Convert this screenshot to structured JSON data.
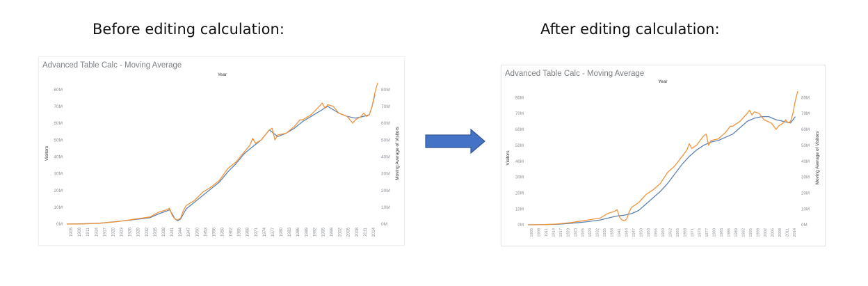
{
  "captions": {
    "before": "Before editing calculation:",
    "after": "After editing calculation:"
  },
  "colors": {
    "visitors": "#5b82b3",
    "moving_average": "#f0943b",
    "arrow": "#4472c4",
    "grid_text": "#8d9196"
  },
  "icons": {
    "arrow": "right-arrow-icon"
  },
  "chart_data": [
    {
      "type": "line",
      "title": "Advanced Table Calc - Moving Average",
      "xlabel": "Year",
      "ylabel": "Visitors",
      "y2label": "Moving Average of Visitors",
      "x_ticks": [
        "1905",
        "1908",
        "1911",
        "1914",
        "1917",
        "1920",
        "1923",
        "1926",
        "1929",
        "1932",
        "1935",
        "1938",
        "1941",
        "1944",
        "1947",
        "1950",
        "1953",
        "1956",
        "1959",
        "1962",
        "1965",
        "1968",
        "1971",
        "1974",
        "1977",
        "1980",
        "1983",
        "1986",
        "1989",
        "1992",
        "1995",
        "1998",
        "2002",
        "2005",
        "2008",
        "2011",
        "2014"
      ],
      "y_ticks": [
        "0M",
        "10M",
        "20M",
        "30M",
        "40M",
        "50M",
        "60M",
        "70M",
        "80M"
      ],
      "y2_ticks": [
        "0M",
        "10M",
        "20M",
        "30M",
        "40M",
        "50M",
        "60M",
        "70M",
        "80M"
      ],
      "ylim": [
        0,
        84
      ],
      "xlim": [
        1904,
        2016
      ],
      "grid": false,
      "series": [
        {
          "name": "Visitors",
          "x": [
            1904,
            1910,
            1916,
            1922,
            1928,
            1934,
            1937,
            1940,
            1941,
            1942,
            1943,
            1944,
            1945,
            1946,
            1947,
            1950,
            1953,
            1956,
            1959,
            1962,
            1965,
            1968,
            1971,
            1974,
            1977,
            1980,
            1983,
            1986,
            1989,
            1992,
            1995,
            1998,
            2002,
            2005,
            2008,
            2011,
            2013,
            2014,
            2015
          ],
          "values": [
            0,
            0.2,
            0.6,
            1.5,
            2.6,
            3.8,
            6,
            7.8,
            8.5,
            6,
            3,
            2,
            3,
            6,
            9,
            13,
            17,
            21,
            25,
            31,
            36,
            42,
            46,
            50,
            56,
            52,
            54,
            57,
            61,
            64,
            67,
            70,
            66,
            64,
            63,
            64,
            65,
            70,
            77
          ]
        },
        {
          "name": "Moving Average of Visitors",
          "x": [
            1904,
            1910,
            1916,
            1922,
            1928,
            1934,
            1937,
            1940,
            1941,
            1942,
            1943,
            1944,
            1945,
            1946,
            1947,
            1950,
            1953,
            1956,
            1959,
            1962,
            1965,
            1968,
            1970,
            1971,
            1972,
            1974,
            1975,
            1977,
            1978,
            1979,
            1980,
            1983,
            1986,
            1988,
            1989,
            1992,
            1995,
            1996,
            1997,
            1998,
            2000,
            2002,
            2005,
            2007,
            2008,
            2010,
            2011,
            2012,
            2013,
            2014,
            2015,
            2016
          ],
          "values": [
            0,
            0.1,
            0.5,
            1.4,
            2.8,
            4.2,
            7,
            8.5,
            9.5,
            5,
            3,
            2.5,
            3.5,
            8,
            11,
            14,
            19,
            22,
            26,
            33,
            37,
            43,
            47,
            51,
            48,
            50,
            52,
            56,
            57,
            50,
            53,
            54,
            58,
            62,
            62,
            65,
            70,
            72,
            69,
            71,
            70,
            66,
            64,
            60,
            62,
            64,
            66,
            64,
            65,
            70,
            78,
            84
          ]
        }
      ]
    },
    {
      "type": "line",
      "title": "Advanced Table Calc - Moving Average",
      "xlabel": "Year",
      "ylabel": "Visitors",
      "y2label": "Moving Average of Visitors",
      "x_ticks": [
        "1905",
        "1908",
        "1911",
        "1914",
        "1917",
        "1920",
        "1923",
        "1926",
        "1929",
        "1932",
        "1935",
        "1938",
        "1941",
        "1944",
        "1947",
        "1950",
        "1953",
        "1956",
        "1959",
        "1962",
        "1965",
        "1968",
        "1971",
        "1974",
        "1977",
        "1980",
        "1983",
        "1986",
        "1989",
        "1992",
        "1995",
        "1998",
        "2002",
        "2005",
        "2008",
        "2011",
        "2014"
      ],
      "y_ticks": [
        "0M",
        "10M",
        "20M",
        "30M",
        "40M",
        "50M",
        "60M",
        "70M",
        "80M"
      ],
      "y2_ticks": [
        "0M",
        "10M",
        "20M",
        "30M",
        "40M",
        "50M",
        "60M",
        "70M",
        "80M"
      ],
      "ylim": [
        0,
        84
      ],
      "xlim": [
        1904,
        2016
      ],
      "grid": false,
      "series": [
        {
          "name": "Visitors",
          "x": [
            1904,
            1910,
            1916,
            1922,
            1928,
            1934,
            1938,
            1941,
            1944,
            1947,
            1950,
            1953,
            1956,
            1959,
            1962,
            1965,
            1968,
            1971,
            1974,
            1977,
            1980,
            1983,
            1986,
            1989,
            1992,
            1995,
            1998,
            2001,
            2004,
            2007,
            2010,
            2013,
            2015
          ],
          "values": [
            0,
            0.1,
            0.3,
            0.9,
            1.8,
            3,
            4.5,
            5.5,
            6,
            7,
            9,
            13,
            17,
            21,
            26,
            32,
            38,
            43,
            47,
            50,
            52,
            53,
            55,
            57,
            61,
            65,
            67,
            68,
            68,
            66,
            65,
            64,
            68
          ]
        },
        {
          "name": "Moving Average of Visitors",
          "x": [
            1904,
            1910,
            1916,
            1922,
            1928,
            1934,
            1937,
            1940,
            1941,
            1942,
            1943,
            1944,
            1945,
            1946,
            1947,
            1950,
            1953,
            1956,
            1959,
            1962,
            1965,
            1968,
            1970,
            1971,
            1972,
            1974,
            1975,
            1977,
            1978,
            1979,
            1980,
            1983,
            1986,
            1988,
            1989,
            1992,
            1995,
            1996,
            1997,
            1998,
            2000,
            2002,
            2005,
            2007,
            2008,
            2010,
            2011,
            2012,
            2013,
            2014,
            2015,
            2016
          ],
          "values": [
            0,
            0.1,
            0.5,
            1.4,
            2.8,
            4.2,
            7,
            8.5,
            9.5,
            5,
            3,
            2.5,
            3.5,
            8,
            11,
            14,
            19,
            22,
            26,
            33,
            37,
            43,
            47,
            51,
            48,
            50,
            52,
            56,
            57,
            50,
            53,
            54,
            58,
            62,
            62,
            65,
            70,
            72,
            69,
            71,
            70,
            66,
            64,
            60,
            62,
            64,
            66,
            64,
            65,
            70,
            78,
            84
          ]
        }
      ]
    }
  ]
}
